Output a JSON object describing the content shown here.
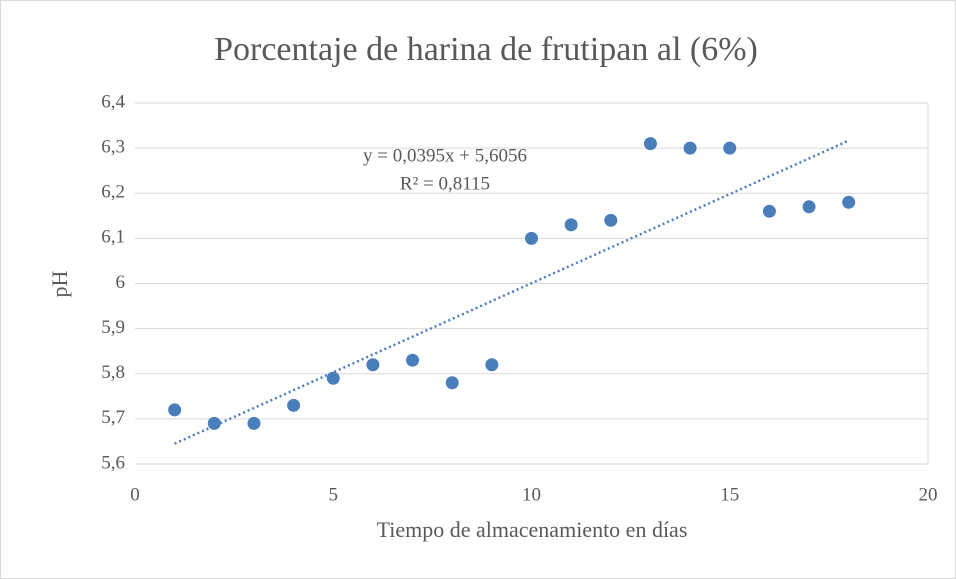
{
  "chart_data": {
    "type": "scatter",
    "title": "Porcentaje de harina de frutipan al (6%)",
    "x_label": "Tiempo de almacenamiento en días",
    "y_label": "pH",
    "series": [
      {
        "name": "pH",
        "color": "#4a7ebb",
        "x": [
          1,
          2,
          3,
          4,
          5,
          6,
          7,
          8,
          9,
          10,
          11,
          12,
          13,
          14,
          15,
          16,
          17,
          18
        ],
        "values": [
          5.72,
          5.69,
          5.69,
          5.73,
          5.79,
          5.82,
          5.83,
          5.78,
          5.82,
          6.1,
          6.13,
          6.14,
          6.31,
          6.3,
          6.3,
          6.16,
          6.17,
          6.18
        ]
      }
    ],
    "trendline": {
      "equation": "y = 0,0395x + 5,6056",
      "r_squared": "R² = 0,8115",
      "slope": 0.0395,
      "intercept": 5.6056,
      "color": "#4a7ebb"
    },
    "xlim": [
      0,
      20
    ],
    "xticks": [
      0,
      5,
      10,
      15,
      20
    ],
    "ylim": [
      5.6,
      6.4
    ],
    "yticks": [
      {
        "value": 5.6,
        "label": "5,6"
      },
      {
        "value": 5.7,
        "label": "5,7"
      },
      {
        "value": 5.8,
        "label": "5,8"
      },
      {
        "value": 5.9,
        "label": "5,9"
      },
      6,
      {
        "value": 6.1,
        "label": "6,1"
      },
      {
        "value": 6.2,
        "label": "6,2"
      },
      {
        "value": 6.3,
        "label": "6,3"
      },
      {
        "value": 6.4,
        "label": "6,4"
      }
    ],
    "grid": true
  }
}
